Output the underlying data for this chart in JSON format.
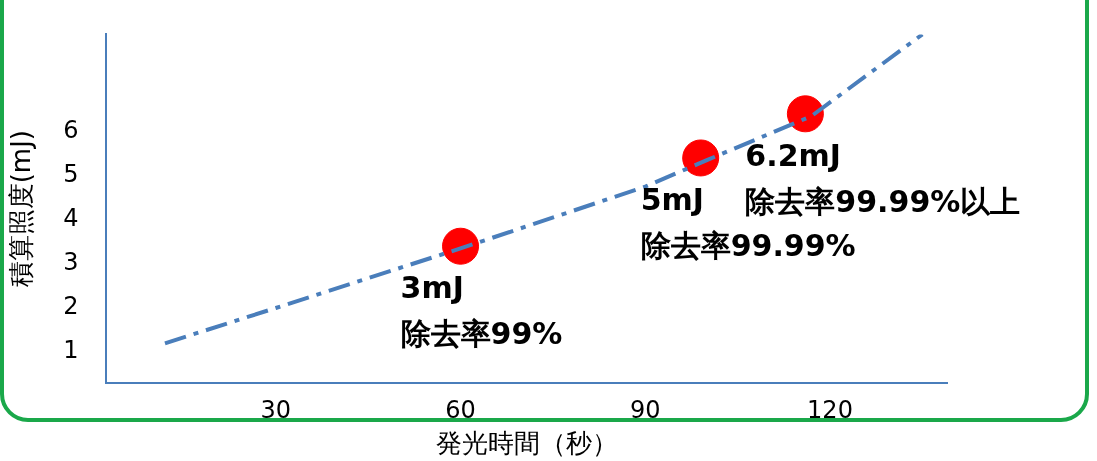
{
  "chart_data": {
    "type": "scatter",
    "xlabel": "発光時間（秒）",
    "ylabel": "積算照度(mJ)",
    "xlim": [
      2.5,
      139
    ],
    "xticks": [
      30,
      60,
      90,
      120
    ],
    "ylim": [
      0.3,
      8.2
    ],
    "yticks": [
      1,
      2,
      3,
      4,
      5,
      6
    ],
    "grid": false,
    "legend": false,
    "marker": "circle",
    "series": [
      {
        "type": "line",
        "color": "#4a7ebb",
        "line_style": "dashdot",
        "marker": "none",
        "x": [
          12,
          30,
          60,
          90,
          100,
          117,
          135
        ],
        "values": [
          1.2,
          2.0,
          3.35,
          4.75,
          5.35,
          6.35,
          8.2
        ]
      },
      {
        "color": "#ff0000",
        "x": [
          60,
          99,
          116
        ],
        "values": [
          3.4,
          5.4,
          6.4
        ]
      }
    ],
    "annotations": [
      {
        "text": "3mJ\n除去率99%",
        "x": 60,
        "y": 3.4
      },
      {
        "text": "5mJ\n除去率99.99%",
        "x": 99,
        "y": 5.4
      },
      {
        "text": "6.2mJ\n除去率99.99%以上",
        "x": 116,
        "y": 6.4
      }
    ]
  }
}
